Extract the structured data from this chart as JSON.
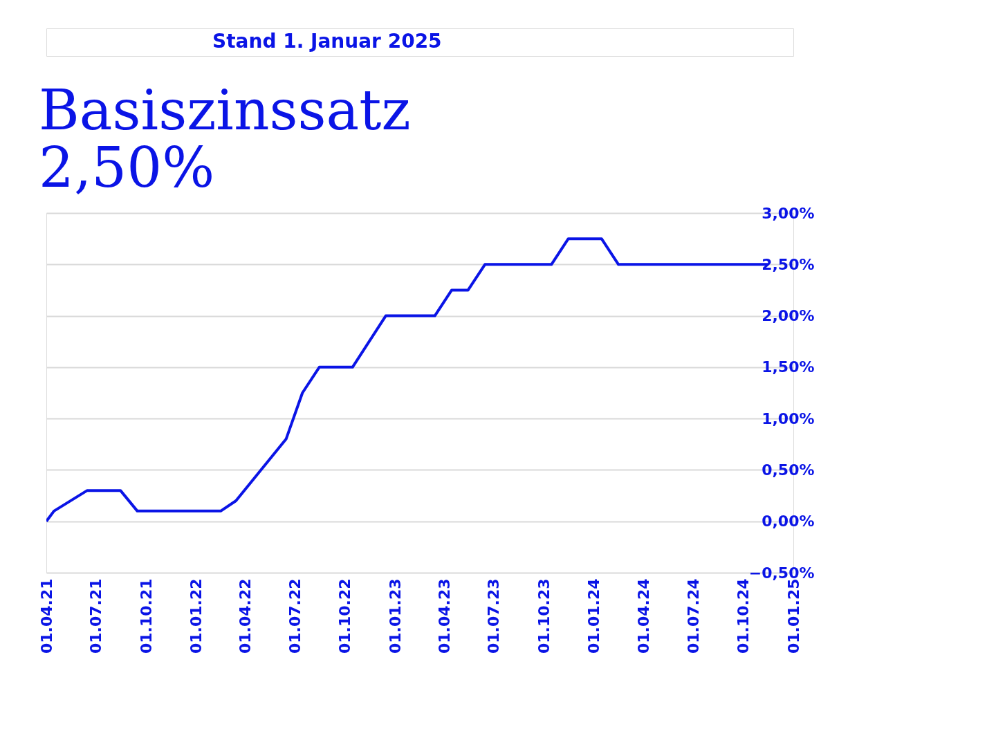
{
  "chart_data": {
    "type": "line",
    "title": "Basiszinssatz",
    "subtitle": "2,50%",
    "annotations": [
      "Stand 1. Januar 2025"
    ],
    "x": [
      "2021-04-01",
      "2021-04-15",
      "2021-06-15",
      "2021-08-15",
      "2021-09-15",
      "2022-02-15",
      "2022-03-15",
      "2022-06-15",
      "2022-07-15",
      "2022-08-15",
      "2022-10-15",
      "2022-12-15",
      "2023-03-15",
      "2023-04-15",
      "2023-05-15",
      "2023-06-15",
      "2023-10-15",
      "2023-11-15",
      "2024-01-15",
      "2024-02-15",
      "2024-11-15"
    ],
    "series": [
      {
        "color": "#0a14e6",
        "values": [
          0.0,
          0.1,
          0.3,
          0.3,
          0.1,
          0.1,
          0.2,
          0.8,
          1.25,
          1.5,
          1.5,
          2.0,
          2.0,
          2.25,
          2.25,
          2.5,
          2.5,
          2.75,
          2.75,
          2.5,
          2.5
        ]
      }
    ],
    "xlim": [
      "2021-04-01",
      "2025-01-01"
    ],
    "xticks": [
      {
        "value": "2021-04-01",
        "label": "01.04.21"
      },
      {
        "value": "2021-07-01",
        "label": "01.07.21"
      },
      {
        "value": "2021-10-01",
        "label": "01.10.21"
      },
      {
        "value": "2022-01-01",
        "label": "01.01.22"
      },
      {
        "value": "2022-04-01",
        "label": "01.04.22"
      },
      {
        "value": "2022-07-01",
        "label": "01.07.22"
      },
      {
        "value": "2022-10-01",
        "label": "01.10.22"
      },
      {
        "value": "2023-01-01",
        "label": "01.01.23"
      },
      {
        "value": "2023-04-01",
        "label": "01.04.23"
      },
      {
        "value": "2023-07-01",
        "label": "01.07.23"
      },
      {
        "value": "2023-10-01",
        "label": "01.10.23"
      },
      {
        "value": "2024-01-01",
        "label": "01.01.24"
      },
      {
        "value": "2024-04-01",
        "label": "01.04.24"
      },
      {
        "value": "2024-07-01",
        "label": "01.07.24"
      },
      {
        "value": "2024-10-01",
        "label": "01.10.24"
      },
      {
        "value": "2025-01-01",
        "label": "01.01.25"
      }
    ],
    "ylim": [
      -0.5,
      3.0
    ],
    "yticks": [
      {
        "value": -0.5,
        "label": "−0,50%"
      },
      {
        "value": 0,
        "label": "0,00%"
      },
      {
        "value": 0.5,
        "label": "0,50%"
      },
      {
        "value": 1,
        "label": "1,00%"
      },
      {
        "value": 1.5,
        "label": "1,50%"
      },
      {
        "value": 2,
        "label": "2,00%"
      },
      {
        "value": 2.5,
        "label": "2,50%"
      },
      {
        "value": 3,
        "label": "3,00%"
      }
    ],
    "grid": "y",
    "marker": "none",
    "line_style": "solid"
  }
}
